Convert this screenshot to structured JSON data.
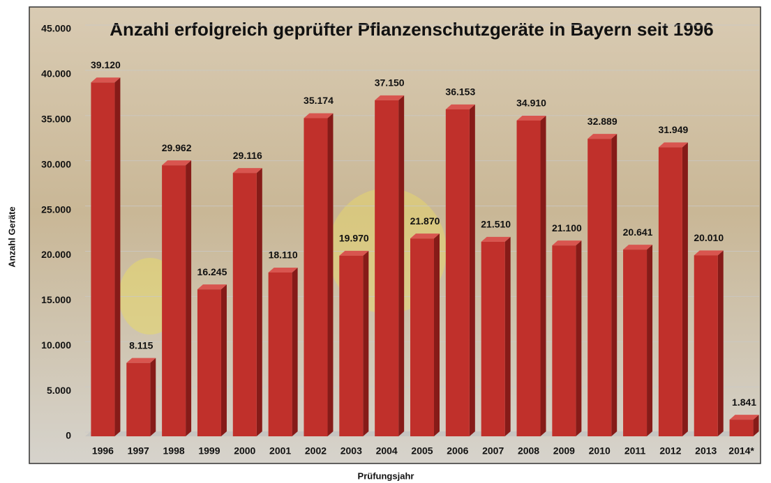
{
  "chart_data": {
    "type": "bar",
    "title": "Anzahl erfolgreich geprüfter Pflanzenschutzgeräte in Bayern seit 1996",
    "x_label": "Prüfungsjahr",
    "y_label": "Anzahl Geräte",
    "categories": [
      "1996",
      "1997",
      "1998",
      "1999",
      "2000",
      "2001",
      "2002",
      "2003",
      "2004",
      "2005",
      "2006",
      "2007",
      "2008",
      "2009",
      "2010",
      "2011",
      "2012",
      "2013",
      "2014*"
    ],
    "values": [
      39120,
      8115,
      29962,
      16245,
      29116,
      18110,
      35174,
      19970,
      37150,
      21870,
      36153,
      21510,
      34910,
      21100,
      32889,
      20641,
      31949,
      20010,
      1841
    ],
    "value_labels": [
      "39.120",
      "8.115",
      "29.962",
      "16.245",
      "29.116",
      "18.110",
      "35.174",
      "19.970",
      "37.150",
      "21.870",
      "36.153",
      "21.510",
      "34.910",
      "21.100",
      "32.889",
      "20.641",
      "31.949",
      "20.010",
      "1.841"
    ],
    "color": "#c0302b",
    "ylim": [
      0,
      45000
    ],
    "yticks": [
      0,
      {
        "value": 5000,
        "label": "5.000"
      },
      {
        "value": 10000,
        "label": "10.000"
      },
      {
        "value": 15000,
        "label": "15.000"
      },
      {
        "value": 20000,
        "label": "20.000"
      },
      {
        "value": 25000,
        "label": "25.000"
      },
      {
        "value": 30000,
        "label": "30.000"
      },
      {
        "value": 35000,
        "label": "35.000"
      },
      {
        "value": 40000,
        "label": "40.000"
      },
      {
        "value": 45000,
        "label": "45.000"
      }
    ],
    "grid": true
  }
}
